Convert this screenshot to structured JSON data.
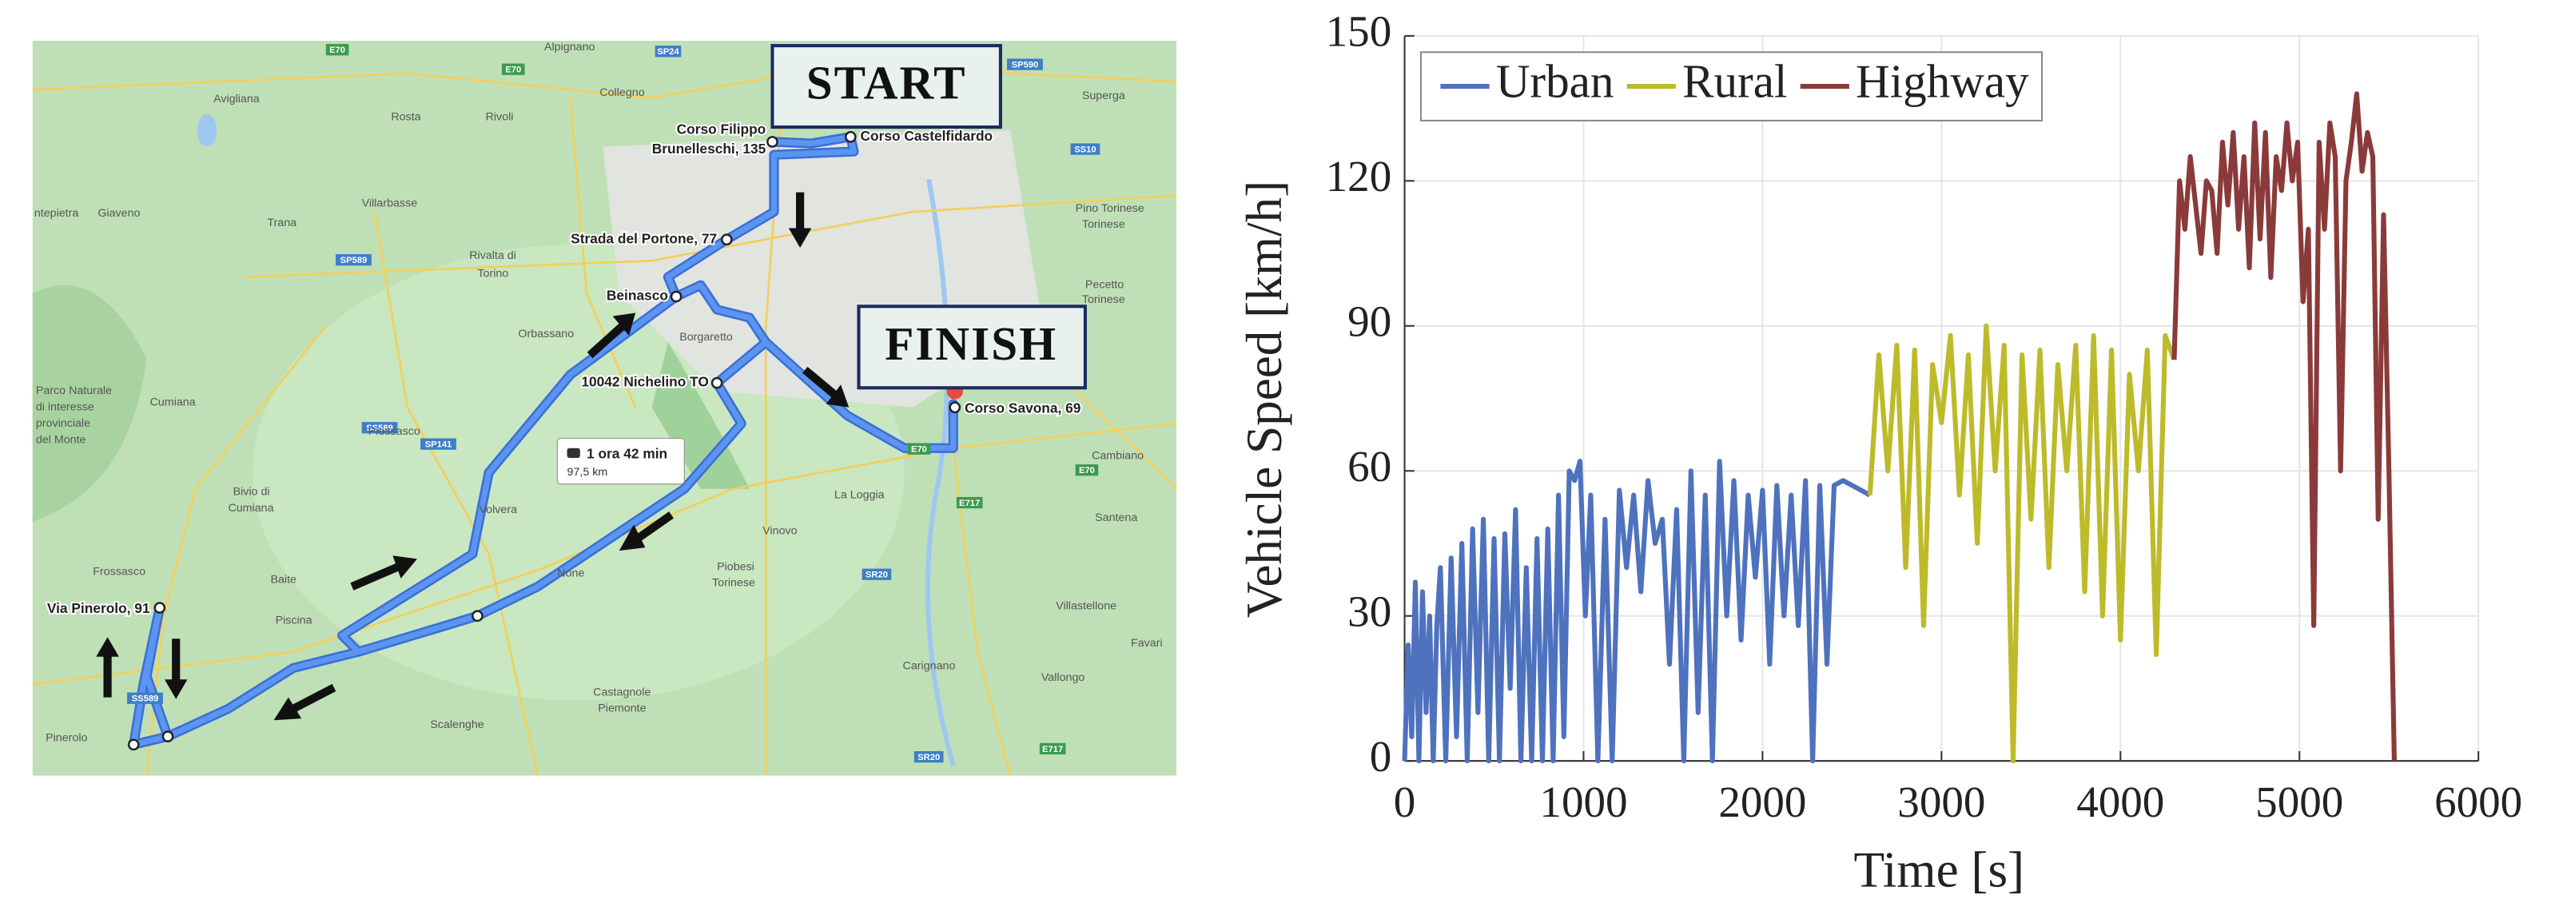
{
  "map": {
    "start": "START",
    "finish": "FINISH",
    "route": {
      "time": "1 ora 42 min",
      "distance": "97,5 km"
    },
    "waypoints": [
      "Corso Filippo",
      "Brunelleschi, 135",
      "Corso Castelfidardo",
      "Strada del Portone, 77",
      "Beinasco",
      "10042 Nichelino TO",
      "Corso Savona, 69",
      "Via Pinerolo, 91"
    ],
    "places": [
      "Alpignano",
      "Avigliana",
      "Rosta",
      "Rivoli",
      "Collegno",
      "Superga",
      "Giaveno",
      "Trana",
      "Villarbasse",
      "Pino Torinese",
      "Rivalta di",
      "Torino",
      "Orbassano",
      "Borgaretto",
      "Pecetto",
      "Torinese",
      "Piossasco",
      "Cumiana",
      "Cambiano",
      "Volvera",
      "Bivio di",
      "Cumiana",
      "La Loggia",
      "Vinovo",
      "Santena",
      "Baite",
      "None",
      "Frossasco",
      "Piscina",
      "Piobesi",
      "Torinese",
      "Villastellone",
      "Castagnole",
      "Piemonte",
      "Carignano",
      "Vallongo",
      "Favari",
      "Scalenghe",
      "Pinerolo",
      "Parco Naturale",
      "di interesse",
      "provinciale",
      "del Monte",
      "ntepietra",
      "Torinese"
    ],
    "road_labels": [
      "E70",
      "E70",
      "SP24",
      "SP590",
      "SS10",
      "SP589",
      "SP141",
      "SS589",
      "SS589",
      "E70",
      "E70",
      "E717",
      "SR20",
      "SR20",
      "E717"
    ]
  },
  "chart_data": {
    "type": "line",
    "xlabel": "Time [s]",
    "ylabel": "Vehicle Speed [km/h]",
    "xlim": [
      0,
      6000
    ],
    "xticks": [
      0,
      1000,
      2000,
      3000,
      4000,
      5000,
      6000
    ],
    "ylim": [
      0,
      150
    ],
    "yticks": [
      0,
      30,
      60,
      90,
      120,
      150
    ],
    "grid": true,
    "legend": "upper left",
    "series": [
      {
        "name": "Urban",
        "color": "#4f72be",
        "x": [
          0,
          20,
          40,
          60,
          80,
          100,
          120,
          140,
          160,
          180,
          200,
          230,
          260,
          290,
          320,
          350,
          380,
          410,
          440,
          470,
          500,
          530,
          560,
          590,
          620,
          650,
          680,
          710,
          740,
          770,
          800,
          830,
          860,
          890,
          920,
          950,
          980,
          1010,
          1040,
          1080,
          1120,
          1160,
          1200,
          1240,
          1280,
          1320,
          1360,
          1400,
          1440,
          1480,
          1520,
          1560,
          1600,
          1640,
          1680,
          1720,
          1760,
          1800,
          1840,
          1880,
          1920,
          1960,
          2000,
          2040,
          2080,
          2120,
          2160,
          2200,
          2240,
          2280,
          2320,
          2360,
          2400,
          2450,
          2550,
          2600
        ],
        "values": [
          0,
          24,
          5,
          37,
          0,
          35,
          10,
          30,
          0,
          28,
          40,
          0,
          42,
          5,
          45,
          0,
          48,
          10,
          50,
          0,
          46,
          0,
          47,
          15,
          52,
          0,
          40,
          0,
          46,
          0,
          48,
          0,
          55,
          5,
          60,
          58,
          62,
          30,
          55,
          0,
          50,
          0,
          56,
          40,
          55,
          35,
          58,
          45,
          50,
          20,
          52,
          0,
          60,
          10,
          55,
          0,
          62,
          30,
          58,
          25,
          55,
          38,
          56,
          20,
          57,
          30,
          55,
          28,
          58,
          0,
          57,
          20,
          57,
          58,
          56,
          55
        ]
      },
      {
        "name": "Rural",
        "color": "#bdbb2a",
        "x": [
          2600,
          2650,
          2700,
          2750,
          2800,
          2850,
          2900,
          2950,
          3000,
          3050,
          3100,
          3150,
          3200,
          3250,
          3300,
          3350,
          3400,
          3450,
          3500,
          3550,
          3600,
          3650,
          3700,
          3750,
          3800,
          3850,
          3900,
          3950,
          4000,
          4050,
          4100,
          4150,
          4200,
          4250,
          4300
        ],
        "values": [
          55,
          84,
          60,
          86,
          40,
          85,
          28,
          82,
          70,
          88,
          55,
          84,
          45,
          90,
          60,
          86,
          0,
          84,
          50,
          85,
          40,
          82,
          60,
          86,
          35,
          88,
          30,
          85,
          25,
          80,
          60,
          85,
          22,
          88,
          83
        ]
      },
      {
        "name": "Highway",
        "color": "#8b3a3a",
        "x": [
          4300,
          4330,
          4360,
          4390,
          4420,
          4450,
          4480,
          4510,
          4540,
          4570,
          4600,
          4630,
          4660,
          4690,
          4720,
          4750,
          4780,
          4810,
          4840,
          4870,
          4900,
          4930,
          4960,
          4990,
          5020,
          5050,
          5080,
          5110,
          5140,
          5170,
          5200,
          5230,
          5260,
          5290,
          5320,
          5350,
          5380,
          5410,
          5440,
          5470,
          5500,
          5530
        ],
        "values": [
          83,
          120,
          110,
          125,
          115,
          105,
          120,
          118,
          105,
          128,
          115,
          130,
          110,
          125,
          102,
          132,
          108,
          130,
          100,
          125,
          118,
          132,
          120,
          128,
          95,
          110,
          28,
          128,
          110,
          132,
          125,
          60,
          120,
          128,
          138,
          122,
          130,
          125,
          50,
          113,
          60,
          0
        ]
      }
    ]
  }
}
